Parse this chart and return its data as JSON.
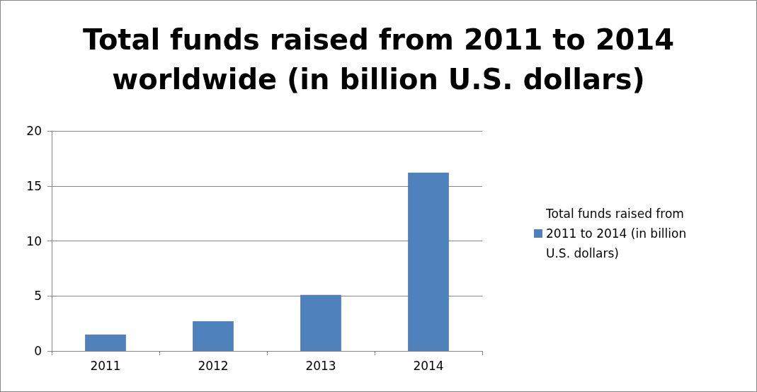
{
  "chart_data": {
    "type": "bar",
    "title": "Total funds raised from 2011 to 2014\nworldwide (in billion U.S. dollars)",
    "categories": [
      "2011",
      "2012",
      "2013",
      "2014"
    ],
    "series": [
      {
        "name": "Total funds raised from 2011 to 2014 (in billion U.S. dollars)",
        "color": "#4f81bd",
        "values": [
          1.5,
          2.7,
          5.1,
          16.2
        ]
      }
    ],
    "ylim": [
      0,
      20
    ],
    "yticks": [
      0,
      5,
      10,
      15,
      20
    ],
    "grid": "y",
    "legend": "right"
  }
}
